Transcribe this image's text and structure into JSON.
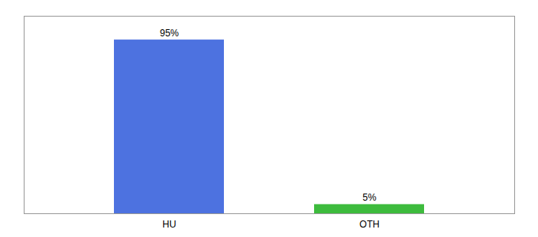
{
  "chart_data": {
    "type": "bar",
    "categories": [
      "HU",
      "OTH"
    ],
    "values": [
      95,
      5
    ],
    "value_labels": [
      "95%",
      "5%"
    ],
    "colors": [
      "#4d72e0",
      "#3dbb3d"
    ],
    "ylim": [
      0,
      108
    ],
    "data_labels": true,
    "tick_labels": "x"
  }
}
